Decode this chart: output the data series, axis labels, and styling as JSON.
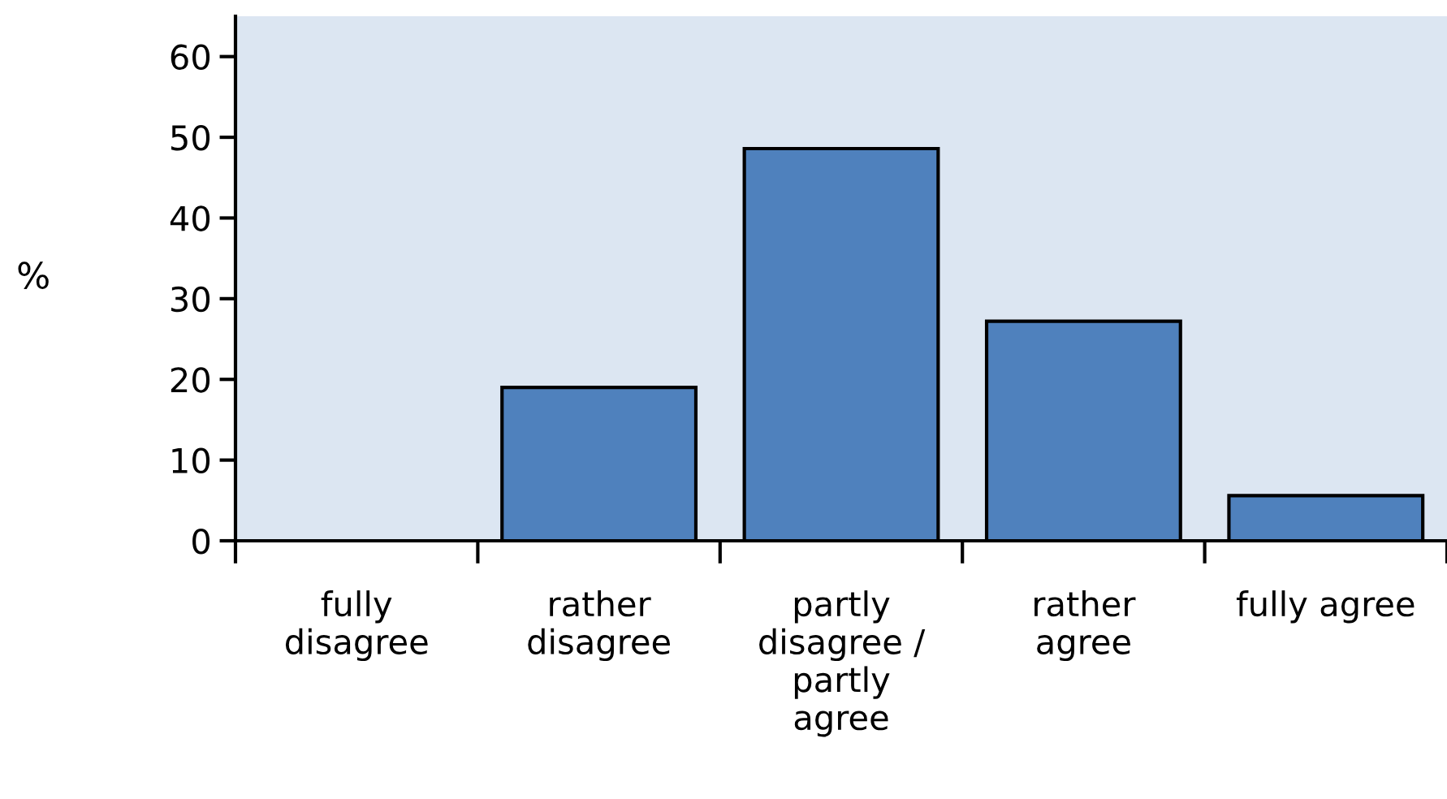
{
  "chart_data": {
    "type": "bar",
    "ylabel": "%",
    "categories": [
      "fully\ndisagree",
      "rather\ndisagree",
      "partly\ndisagree /\npartly\nagree",
      "rather\nagree",
      "fully agree"
    ],
    "values": [
      0,
      19,
      48.6,
      27.2,
      5.6
    ],
    "color": "#4f81bd",
    "ylim": [
      0,
      65
    ],
    "yticks": [
      0,
      10,
      20,
      30,
      40,
      50,
      60
    ],
    "grid": false,
    "legend": false
  }
}
